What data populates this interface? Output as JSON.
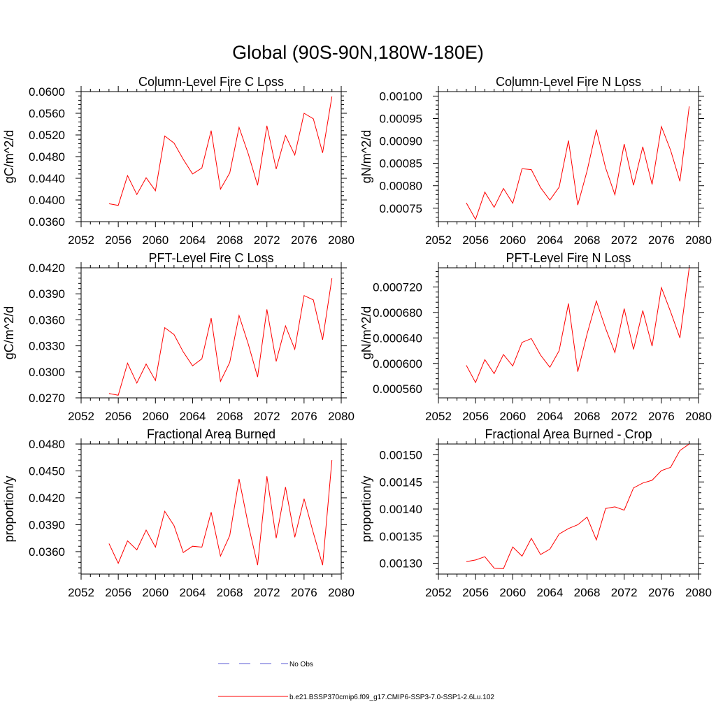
{
  "figure": {
    "title": "Global (90S-90N,180W-180E)",
    "legend": [
      {
        "label": "No Obs",
        "color": "#5a5ad6",
        "dash": true
      },
      {
        "label": "b.e21.BSSP370cmip6.f09_g17.CMIP6-SSP3-7.0-SSP1-2.6Lu.102",
        "color": "#ff0000",
        "dash": false
      }
    ]
  },
  "chart_data": [
    {
      "type": "line",
      "title": "Column-Level Fire C Loss",
      "ylabel": "gC/m^2/d",
      "xlim": [
        2052,
        2080
      ],
      "ylim": [
        0.036,
        0.06
      ],
      "xticks": [
        2052,
        2056,
        2060,
        2064,
        2068,
        2072,
        2076,
        2080
      ],
      "xtick_labels": [
        "2052",
        "2056",
        "2060",
        "2064",
        "2068",
        "2072",
        "2076",
        "2080"
      ],
      "yticks": [
        0.036,
        0.04,
        0.044,
        0.048,
        0.052,
        0.056,
        0.06
      ],
      "ytick_labels": [
        "0.0360",
        "0.0400",
        "0.0440",
        "0.0480",
        "0.0520",
        "0.0560",
        "0.0600"
      ],
      "series": [
        {
          "color": "#ff0000",
          "x": [
            2055,
            2056,
            2057,
            2058,
            2059,
            2060,
            2061,
            2062,
            2063,
            2064,
            2065,
            2066,
            2067,
            2068,
            2069,
            2070,
            2071,
            2072,
            2073,
            2074,
            2075,
            2076,
            2077,
            2078,
            2079
          ],
          "y": [
            0.0393,
            0.039,
            0.0445,
            0.041,
            0.0441,
            0.0417,
            0.0518,
            0.0505,
            0.0475,
            0.0448,
            0.0459,
            0.0528,
            0.042,
            0.045,
            0.0534,
            0.0485,
            0.0427,
            0.0537,
            0.0457,
            0.0519,
            0.0483,
            0.056,
            0.055,
            0.0487,
            0.0591
          ]
        }
      ]
    },
    {
      "type": "line",
      "title": "Column-Level Fire N Loss",
      "ylabel": "gN/m^2/d",
      "xlim": [
        2052,
        2080
      ],
      "ylim": [
        0.00072,
        0.00101
      ],
      "xticks": [
        2052,
        2056,
        2060,
        2064,
        2068,
        2072,
        2076,
        2080
      ],
      "xtick_labels": [
        "2052",
        "2056",
        "2060",
        "2064",
        "2068",
        "2072",
        "2076",
        "2080"
      ],
      "yticks": [
        0.00075,
        0.0008,
        0.00085,
        0.0009,
        0.00095,
        0.001
      ],
      "ytick_labels": [
        "0.00075",
        "0.00080",
        "0.00085",
        "0.00090",
        "0.00095",
        "0.00100"
      ],
      "series": [
        {
          "color": "#ff0000",
          "x": [
            2055,
            2056,
            2057,
            2058,
            2059,
            2060,
            2061,
            2062,
            2063,
            2064,
            2065,
            2066,
            2067,
            2068,
            2069,
            2070,
            2071,
            2072,
            2073,
            2074,
            2075,
            2076,
            2077,
            2078,
            2079
          ],
          "y": [
            0.000762,
            0.000725,
            0.000786,
            0.000752,
            0.000794,
            0.000761,
            0.000838,
            0.000836,
            0.000796,
            0.000768,
            0.000797,
            0.000901,
            0.000757,
            0.000833,
            0.000925,
            0.00084,
            0.00078,
            0.000893,
            0.000801,
            0.000887,
            0.000803,
            0.000932,
            0.000879,
            0.00081,
            0.000977
          ]
        }
      ]
    },
    {
      "type": "line",
      "title": "PFT-Level Fire C Loss",
      "ylabel": "gC/m^2/d",
      "xlim": [
        2052,
        2080
      ],
      "ylim": [
        0.027,
        0.042
      ],
      "xticks": [
        2052,
        2056,
        2060,
        2064,
        2068,
        2072,
        2076,
        2080
      ],
      "xtick_labels": [
        "2052",
        "2056",
        "2060",
        "2064",
        "2068",
        "2072",
        "2076",
        "2080"
      ],
      "yticks": [
        0.027,
        0.03,
        0.033,
        0.036,
        0.039,
        0.042
      ],
      "ytick_labels": [
        "0.0270",
        "0.0300",
        "0.0330",
        "0.0360",
        "0.0390",
        "0.0420"
      ],
      "series": [
        {
          "color": "#ff0000",
          "x": [
            2055,
            2056,
            2057,
            2058,
            2059,
            2060,
            2061,
            2062,
            2063,
            2064,
            2065,
            2066,
            2067,
            2068,
            2069,
            2070,
            2071,
            2072,
            2073,
            2074,
            2075,
            2076,
            2077,
            2078,
            2079
          ],
          "y": [
            0.0275,
            0.0273,
            0.031,
            0.0287,
            0.0309,
            0.029,
            0.0351,
            0.0343,
            0.0323,
            0.0307,
            0.0315,
            0.0362,
            0.0289,
            0.0311,
            0.0365,
            0.0332,
            0.0294,
            0.0372,
            0.0312,
            0.0353,
            0.0326,
            0.0388,
            0.0383,
            0.0337,
            0.0408
          ]
        }
      ]
    },
    {
      "type": "line",
      "title": "PFT-Level Fire N Loss",
      "ylabel": "gN/m^2/d",
      "xlim": [
        2052,
        2080
      ],
      "ylim": [
        0.000546,
        0.00075
      ],
      "xticks": [
        2052,
        2056,
        2060,
        2064,
        2068,
        2072,
        2076,
        2080
      ],
      "xtick_labels": [
        "2052",
        "2056",
        "2060",
        "2064",
        "2068",
        "2072",
        "2076",
        "2080"
      ],
      "yticks": [
        0.00056,
        0.0006,
        0.00064,
        0.00068,
        0.00072
      ],
      "ytick_labels": [
        "0.000560",
        "0.000600",
        "0.000640",
        "0.000680",
        "0.000720"
      ],
      "series": [
        {
          "color": "#ff0000",
          "x": [
            2055,
            2056,
            2057,
            2058,
            2059,
            2060,
            2061,
            2062,
            2063,
            2064,
            2065,
            2066,
            2067,
            2068,
            2069,
            2070,
            2071,
            2072,
            2073,
            2074,
            2075,
            2076,
            2077,
            2078,
            2079
          ],
          "y": [
            0.000597,
            0.00057,
            0.000606,
            0.000584,
            0.000614,
            0.000596,
            0.000633,
            0.000639,
            0.000613,
            0.000594,
            0.00062,
            0.000694,
            0.000587,
            0.000646,
            0.000698,
            0.000655,
            0.000617,
            0.000686,
            0.000622,
            0.000683,
            0.000627,
            0.000719,
            0.000681,
            0.00064,
            0.00075
          ]
        }
      ]
    },
    {
      "type": "line",
      "title": "Fractional Area Burned",
      "ylabel": "proportion/y",
      "xlim": [
        2052,
        2080
      ],
      "ylim": [
        0.0335,
        0.048
      ],
      "xticks": [
        2052,
        2056,
        2060,
        2064,
        2068,
        2072,
        2076,
        2080
      ],
      "xtick_labels": [
        "2052",
        "2056",
        "2060",
        "2064",
        "2068",
        "2072",
        "2076",
        "2080"
      ],
      "yticks": [
        0.036,
        0.039,
        0.042,
        0.045,
        0.048
      ],
      "ytick_labels": [
        "0.0360",
        "0.0390",
        "0.0420",
        "0.0450",
        "0.0480"
      ],
      "series": [
        {
          "color": "#ff0000",
          "x": [
            2055,
            2056,
            2057,
            2058,
            2059,
            2060,
            2061,
            2062,
            2063,
            2064,
            2065,
            2066,
            2067,
            2068,
            2069,
            2070,
            2071,
            2072,
            2073,
            2074,
            2075,
            2076,
            2077,
            2078,
            2079
          ],
          "y": [
            0.0369,
            0.0347,
            0.0372,
            0.0362,
            0.0384,
            0.0365,
            0.0405,
            0.0389,
            0.0359,
            0.0366,
            0.0365,
            0.0404,
            0.0355,
            0.0378,
            0.0441,
            0.039,
            0.0345,
            0.0444,
            0.0375,
            0.0432,
            0.0376,
            0.0419,
            0.0381,
            0.0345,
            0.0462
          ]
        }
      ]
    },
    {
      "type": "line",
      "title": "Fractional Area Burned - Crop",
      "ylabel": "proportion/y",
      "xlim": [
        2052,
        2080
      ],
      "ylim": [
        0.00128,
        0.00152
      ],
      "xticks": [
        2052,
        2056,
        2060,
        2064,
        2068,
        2072,
        2076,
        2080
      ],
      "xtick_labels": [
        "2052",
        "2056",
        "2060",
        "2064",
        "2068",
        "2072",
        "2076",
        "2080"
      ],
      "yticks": [
        0.0013,
        0.00135,
        0.0014,
        0.00145,
        0.0015
      ],
      "ytick_labels": [
        "0.00130",
        "0.00135",
        "0.00140",
        "0.00145",
        "0.00150"
      ],
      "series": [
        {
          "color": "#ff0000",
          "x": [
            2055,
            2056,
            2057,
            2058,
            2059,
            2060,
            2061,
            2062,
            2063,
            2064,
            2065,
            2066,
            2067,
            2068,
            2069,
            2070,
            2071,
            2072,
            2073,
            2074,
            2075,
            2076,
            2077,
            2078,
            2079
          ],
          "y": [
            0.001303,
            0.001306,
            0.001312,
            0.001291,
            0.00129,
            0.00133,
            0.001313,
            0.001346,
            0.001316,
            0.001326,
            0.001354,
            0.001364,
            0.001371,
            0.001385,
            0.001343,
            0.001401,
            0.001404,
            0.001398,
            0.001439,
            0.001448,
            0.001453,
            0.001471,
            0.001477,
            0.001508,
            0.00152
          ]
        }
      ]
    }
  ]
}
